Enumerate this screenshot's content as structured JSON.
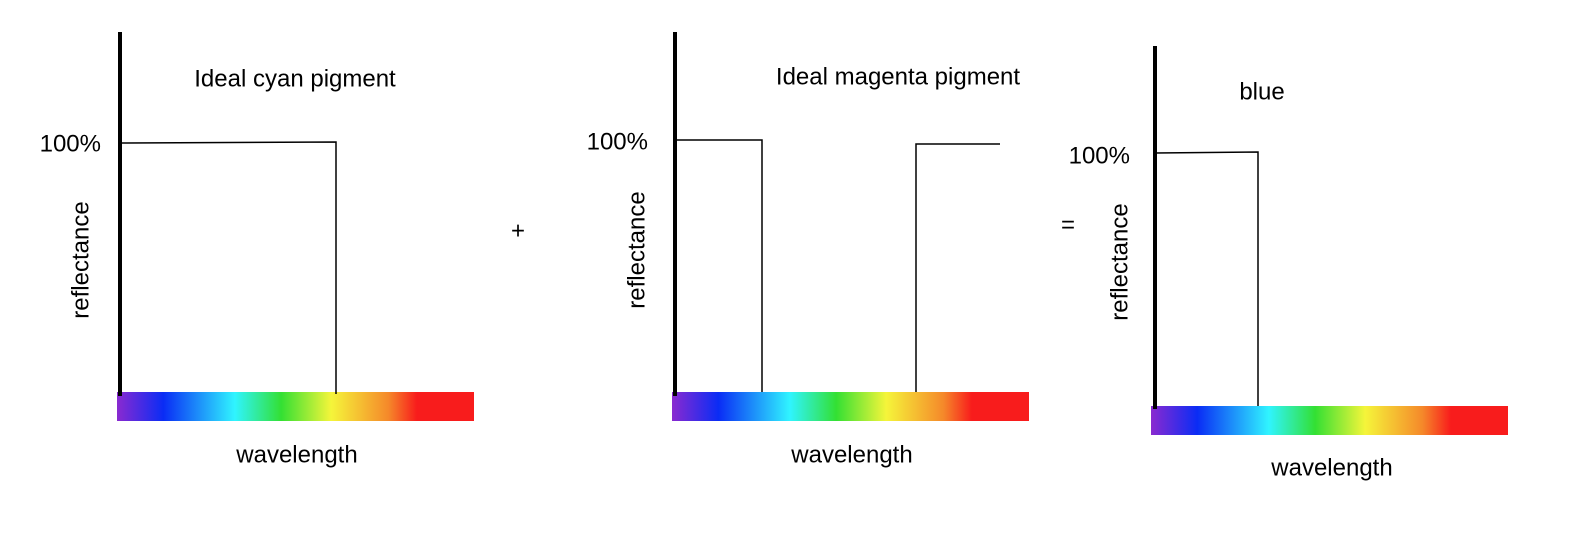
{
  "panels": [
    {
      "title": "Ideal cyan pigment",
      "y_tick": "100%",
      "y_label": "reflectance",
      "x_label": "wavelength"
    },
    {
      "title": "Ideal magenta pigment",
      "y_tick": "100%",
      "y_label": "reflectance",
      "x_label": "wavelength"
    },
    {
      "title": "blue",
      "y_tick": "100%",
      "y_label": "reflectance",
      "x_label": "wavelength"
    }
  ],
  "operators": [
    "+",
    "="
  ]
}
